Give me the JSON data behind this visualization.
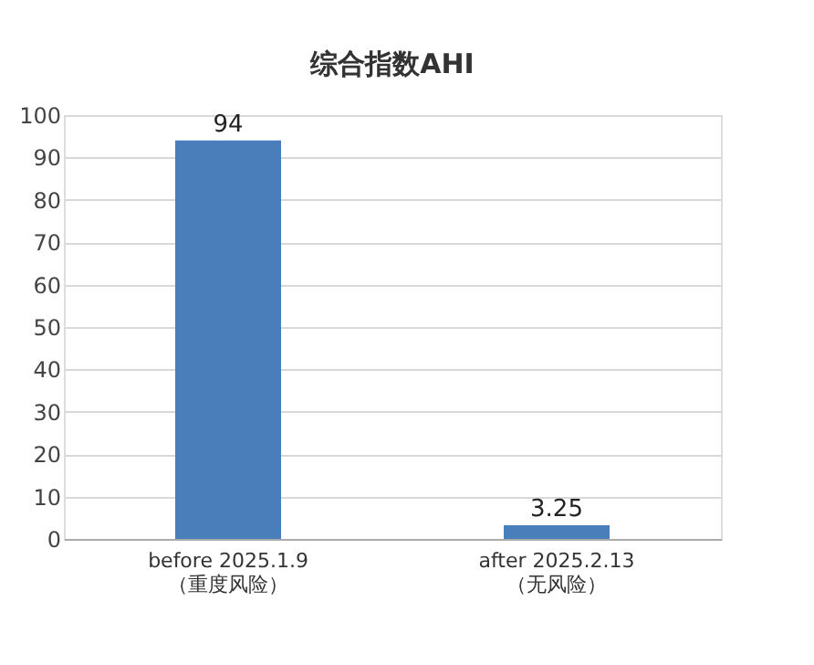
{
  "chart_data": {
    "type": "bar",
    "title": "综合指数AHI",
    "categories": [
      "before  2025.1.9\n（重度风险）",
      "after  2025.2.13\n（无风险）"
    ],
    "values": [
      94,
      3.25
    ],
    "color": "#4a7ebb",
    "ylim": [
      0,
      100
    ],
    "yticks": [
      0,
      10,
      20,
      30,
      40,
      50,
      60,
      70,
      80,
      90,
      100
    ],
    "grid": "y",
    "data_labels": true
  }
}
